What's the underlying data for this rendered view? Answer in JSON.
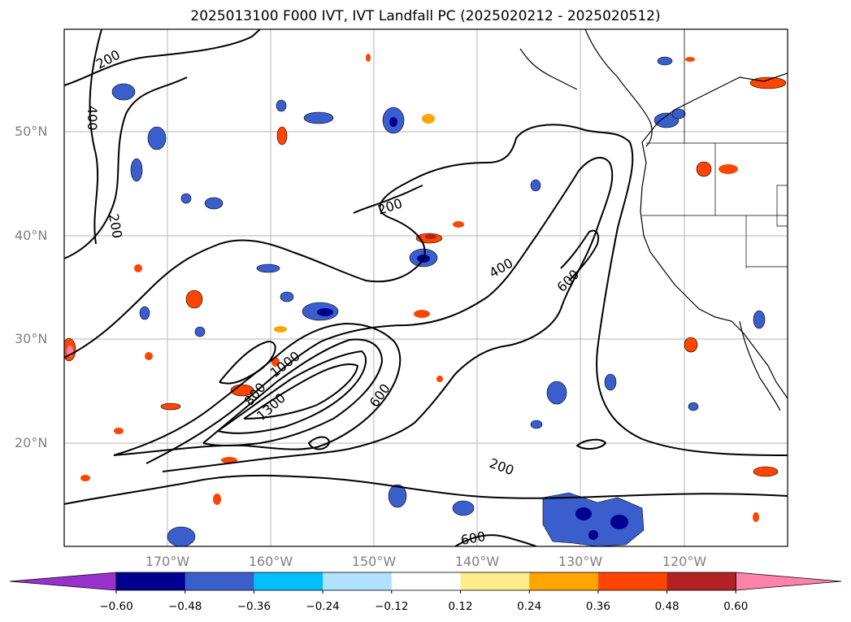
{
  "title": "2025013100 F000 IVT, IVT Landfall PC (2025020212 - 2025020512)",
  "map": {
    "lat_labels": [
      "50°N",
      "40°N",
      "30°N",
      "20°N"
    ],
    "lon_labels": [
      "170°W",
      "160°W",
      "150°W",
      "140°W",
      "130°W",
      "120°W"
    ],
    "lat_range": [
      10,
      60
    ],
    "lon_range": [
      -180,
      -110
    ],
    "grid": true,
    "label_color": "#808080",
    "contour_levels_shown": [
      "200",
      "400",
      "600",
      "800",
      "1000",
      "1300",
      "200",
      "200",
      "400",
      "600",
      "200",
      "600"
    ]
  },
  "colorbar": {
    "extend": "both",
    "ticks": [
      "−0.60",
      "−0.48",
      "−0.36",
      "−0.24",
      "−0.12",
      "0.12",
      "0.24",
      "0.36",
      "0.48",
      "0.60"
    ],
    "colors": [
      "#9932cc",
      "#000090",
      "#3a5fcd",
      "#00bfff",
      "#b0e2ff",
      "#ffffff",
      "#ffec8b",
      "#ffa500",
      "#ff4500",
      "#b22222",
      "#ff82ab"
    ]
  }
}
